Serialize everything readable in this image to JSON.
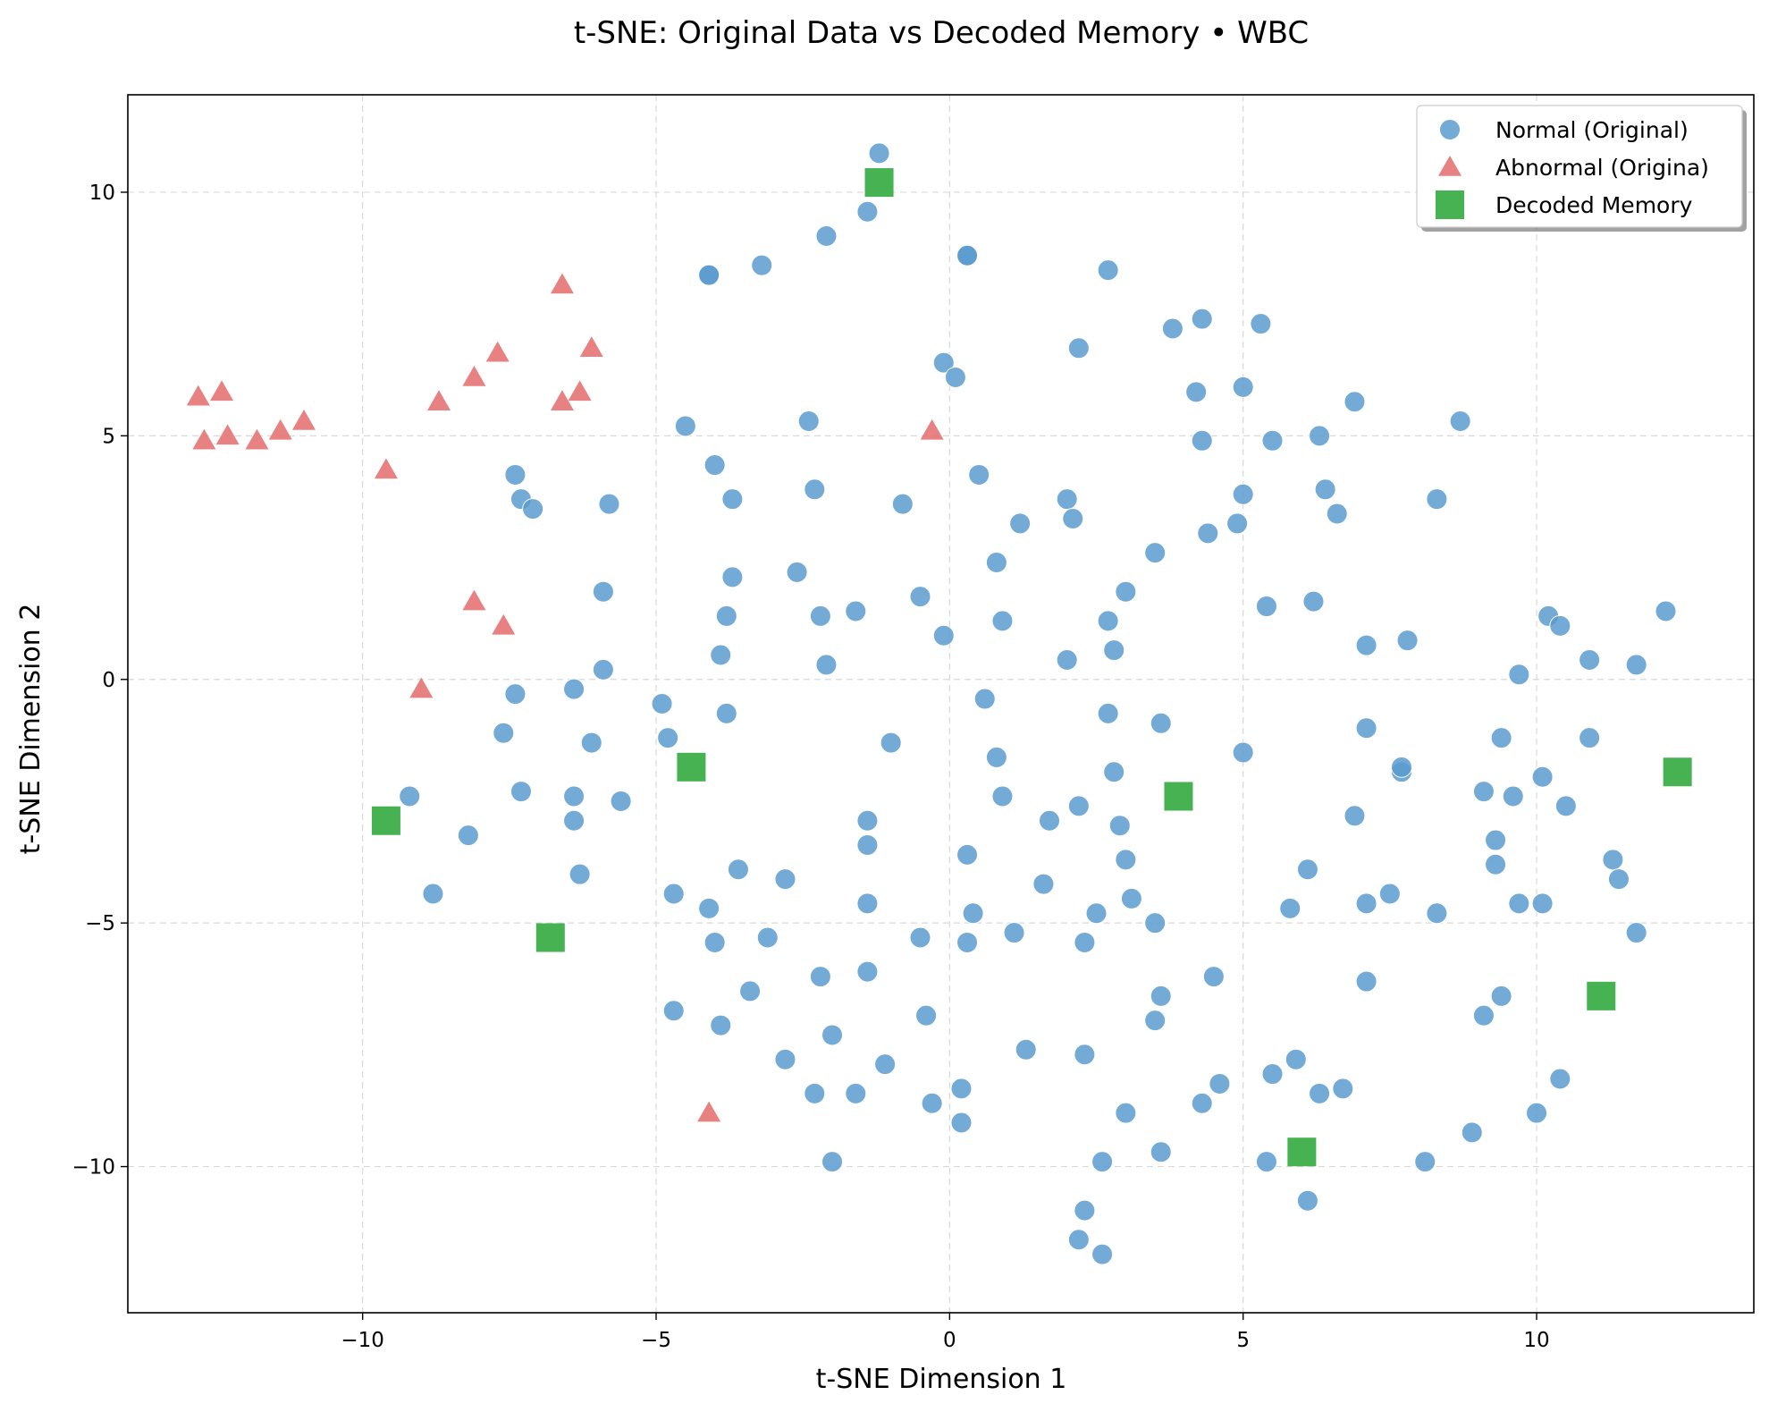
{
  "chart_data": {
    "type": "scatter",
    "title": "t-SNE: Original Data vs Decoded Memory • WBC",
    "xlabel": "t-SNE Dimension 1",
    "ylabel": "t-SNE Dimension 2",
    "xlim": [
      -14,
      13.7
    ],
    "ylim": [
      -13,
      12
    ],
    "xticks": [
      -10,
      -5,
      0,
      5,
      10
    ],
    "yticks": [
      -10,
      -5,
      0,
      5,
      10
    ],
    "xtick_labels": [
      "−10",
      "−5",
      "0",
      "5",
      "10"
    ],
    "ytick_labels": [
      "−10",
      "−5",
      "0",
      "5",
      "10"
    ],
    "grid": true,
    "legend_position": "top-right",
    "series": [
      {
        "name": "Normal (Original)",
        "marker": "circle",
        "color": "#5b9bcf",
        "points": [
          [
            -1.2,
            10.8
          ],
          [
            -1.4,
            9.6
          ],
          [
            -2.1,
            9.1
          ],
          [
            -3.2,
            8.5
          ],
          [
            -4.1,
            8.3
          ],
          [
            -4.1,
            8.3
          ],
          [
            0.3,
            8.7
          ],
          [
            0.3,
            8.7
          ],
          [
            2.7,
            8.4
          ],
          [
            2.2,
            6.8
          ],
          [
            3.8,
            7.2
          ],
          [
            4.3,
            7.4
          ],
          [
            5.3,
            7.3
          ],
          [
            -0.1,
            6.5
          ],
          [
            0.1,
            6.2
          ],
          [
            4.2,
            5.9
          ],
          [
            5.0,
            6.0
          ],
          [
            6.9,
            5.7
          ],
          [
            8.7,
            5.3
          ],
          [
            -4.5,
            5.2
          ],
          [
            -2.4,
            5.3
          ],
          [
            4.3,
            4.9
          ],
          [
            5.5,
            4.9
          ],
          [
            6.3,
            5.0
          ],
          [
            -4.0,
            4.4
          ],
          [
            0.5,
            4.2
          ],
          [
            -7.4,
            4.2
          ],
          [
            -7.3,
            3.7
          ],
          [
            -7.1,
            3.5
          ],
          [
            -5.8,
            3.6
          ],
          [
            -3.7,
            3.7
          ],
          [
            -2.3,
            3.9
          ],
          [
            -0.8,
            3.6
          ],
          [
            2.0,
            3.7
          ],
          [
            2.1,
            3.3
          ],
          [
            1.2,
            3.2
          ],
          [
            5.0,
            3.8
          ],
          [
            6.4,
            3.9
          ],
          [
            6.6,
            3.4
          ],
          [
            4.4,
            3.0
          ],
          [
            4.9,
            3.2
          ],
          [
            8.3,
            3.7
          ],
          [
            3.5,
            2.6
          ],
          [
            0.8,
            2.4
          ],
          [
            -3.7,
            2.1
          ],
          [
            -2.6,
            2.2
          ],
          [
            -5.9,
            1.8
          ],
          [
            -0.5,
            1.7
          ],
          [
            3.0,
            1.8
          ],
          [
            5.4,
            1.5
          ],
          [
            6.2,
            1.6
          ],
          [
            -1.6,
            1.4
          ],
          [
            -2.2,
            1.3
          ],
          [
            -3.8,
            1.3
          ],
          [
            0.9,
            1.2
          ],
          [
            2.7,
            1.2
          ],
          [
            10.2,
            1.3
          ],
          [
            10.4,
            1.1
          ],
          [
            12.2,
            1.4
          ],
          [
            -0.1,
            0.9
          ],
          [
            7.1,
            0.7
          ],
          [
            7.8,
            0.8
          ],
          [
            -3.9,
            0.5
          ],
          [
            2.0,
            0.4
          ],
          [
            2.8,
            0.6
          ],
          [
            10.9,
            0.4
          ],
          [
            11.7,
            0.3
          ],
          [
            -2.1,
            0.3
          ],
          [
            -5.9,
            0.2
          ],
          [
            9.7,
            0.1
          ],
          [
            -7.4,
            -0.3
          ],
          [
            -6.4,
            -0.2
          ],
          [
            -4.9,
            -0.5
          ],
          [
            0.6,
            -0.4
          ],
          [
            -3.8,
            -0.7
          ],
          [
            2.7,
            -0.7
          ],
          [
            3.6,
            -0.9
          ],
          [
            -7.6,
            -1.1
          ],
          [
            -4.8,
            -1.2
          ],
          [
            -6.1,
            -1.3
          ],
          [
            -1.0,
            -1.3
          ],
          [
            7.1,
            -1.0
          ],
          [
            9.4,
            -1.2
          ],
          [
            10.9,
            -1.2
          ],
          [
            5.0,
            -1.5
          ],
          [
            0.8,
            -1.6
          ],
          [
            2.8,
            -1.9
          ],
          [
            7.7,
            -1.9
          ],
          [
            7.7,
            -1.8
          ],
          [
            10.1,
            -2.0
          ],
          [
            -9.2,
            -2.4
          ],
          [
            -7.3,
            -2.3
          ],
          [
            -6.4,
            -2.4
          ],
          [
            -5.6,
            -2.5
          ],
          [
            0.9,
            -2.4
          ],
          [
            9.1,
            -2.3
          ],
          [
            9.6,
            -2.4
          ],
          [
            2.2,
            -2.6
          ],
          [
            10.5,
            -2.6
          ],
          [
            6.9,
            -2.8
          ],
          [
            -6.4,
            -2.9
          ],
          [
            -1.4,
            -2.9
          ],
          [
            1.7,
            -2.9
          ],
          [
            2.9,
            -3.0
          ],
          [
            -8.2,
            -3.2
          ],
          [
            9.3,
            -3.3
          ],
          [
            -1.4,
            -3.4
          ],
          [
            0.3,
            -3.6
          ],
          [
            3.0,
            -3.7
          ],
          [
            9.3,
            -3.8
          ],
          [
            11.3,
            -3.7
          ],
          [
            -6.3,
            -4.0
          ],
          [
            -3.6,
            -3.9
          ],
          [
            -2.8,
            -4.1
          ],
          [
            6.1,
            -3.9
          ],
          [
            1.6,
            -4.2
          ],
          [
            11.4,
            -4.1
          ],
          [
            -8.8,
            -4.4
          ],
          [
            -4.7,
            -4.4
          ],
          [
            3.1,
            -4.5
          ],
          [
            7.5,
            -4.4
          ],
          [
            -4.1,
            -4.7
          ],
          [
            -1.4,
            -4.6
          ],
          [
            7.1,
            -4.6
          ],
          [
            9.7,
            -4.6
          ],
          [
            10.1,
            -4.6
          ],
          [
            0.4,
            -4.8
          ],
          [
            2.5,
            -4.8
          ],
          [
            5.8,
            -4.7
          ],
          [
            8.3,
            -4.8
          ],
          [
            3.5,
            -5.0
          ],
          [
            11.7,
            -5.2
          ],
          [
            -4.0,
            -5.4
          ],
          [
            -3.1,
            -5.3
          ],
          [
            -0.5,
            -5.3
          ],
          [
            0.3,
            -5.4
          ],
          [
            1.1,
            -5.2
          ],
          [
            2.3,
            -5.4
          ],
          [
            -1.4,
            -6.0
          ],
          [
            -2.2,
            -6.1
          ],
          [
            4.5,
            -6.1
          ],
          [
            7.1,
            -6.2
          ],
          [
            -3.4,
            -6.4
          ],
          [
            3.6,
            -6.5
          ],
          [
            9.4,
            -6.5
          ],
          [
            -4.7,
            -6.8
          ],
          [
            -3.9,
            -7.1
          ],
          [
            -2.0,
            -7.3
          ],
          [
            -0.4,
            -6.9
          ],
          [
            3.5,
            -7.0
          ],
          [
            9.1,
            -6.9
          ],
          [
            1.3,
            -7.6
          ],
          [
            2.3,
            -7.7
          ],
          [
            -2.8,
            -7.8
          ],
          [
            -1.1,
            -7.9
          ],
          [
            5.9,
            -7.8
          ],
          [
            -2.3,
            -8.5
          ],
          [
            -1.6,
            -8.5
          ],
          [
            0.2,
            -8.4
          ],
          [
            -0.3,
            -8.7
          ],
          [
            4.6,
            -8.3
          ],
          [
            5.5,
            -8.1
          ],
          [
            6.3,
            -8.5
          ],
          [
            6.7,
            -8.4
          ],
          [
            10.4,
            -8.2
          ],
          [
            3.0,
            -8.9
          ],
          [
            4.3,
            -8.7
          ],
          [
            10.0,
            -8.9
          ],
          [
            0.2,
            -9.1
          ],
          [
            8.9,
            -9.3
          ],
          [
            -2.0,
            -9.9
          ],
          [
            2.6,
            -9.9
          ],
          [
            3.6,
            -9.7
          ],
          [
            5.4,
            -9.9
          ],
          [
            8.1,
            -9.9
          ],
          [
            6.1,
            -10.7
          ],
          [
            2.3,
            -10.9
          ],
          [
            2.2,
            -11.5
          ],
          [
            2.6,
            -11.8
          ]
        ]
      },
      {
        "name": "Abnormal (Origina)",
        "marker": "triangle",
        "color": "#e57373",
        "points": [
          [
            -12.8,
            5.8
          ],
          [
            -12.4,
            5.9
          ],
          [
            -12.7,
            4.9
          ],
          [
            -12.3,
            5.0
          ],
          [
            -11.8,
            4.9
          ],
          [
            -11.4,
            5.1
          ],
          [
            -11.0,
            5.3
          ],
          [
            -9.6,
            4.3
          ],
          [
            -8.7,
            5.7
          ],
          [
            -8.1,
            6.2
          ],
          [
            -7.7,
            6.7
          ],
          [
            -6.6,
            8.1
          ],
          [
            -6.1,
            6.8
          ],
          [
            -6.6,
            5.7
          ],
          [
            -6.3,
            5.9
          ],
          [
            -8.1,
            1.6
          ],
          [
            -7.6,
            1.1
          ],
          [
            -9.0,
            -0.2
          ],
          [
            -4.1,
            -8.9
          ],
          [
            -0.3,
            5.1
          ]
        ]
      },
      {
        "name": "Decoded Memory",
        "marker": "square",
        "color": "#3cae48",
        "points": [
          [
            -1.2,
            10.2
          ],
          [
            -4.4,
            -1.8
          ],
          [
            -9.6,
            -2.9
          ],
          [
            -6.8,
            -5.3
          ],
          [
            3.9,
            -2.4
          ],
          [
            12.4,
            -1.9
          ],
          [
            11.1,
            -6.5
          ],
          [
            6.0,
            -9.7
          ]
        ]
      }
    ]
  }
}
